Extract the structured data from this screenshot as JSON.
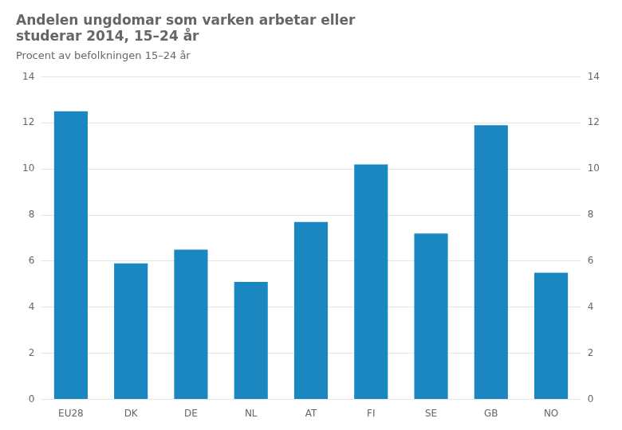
{
  "chart_data": {
    "type": "bar",
    "title": [
      "Andelen ungdomar som varken arbetar eller",
      "studerar 2014, 15–24 år"
    ],
    "subtitle": "Procent av befolkningen 15–24 år",
    "categories": [
      "EU28",
      "DK",
      "DE",
      "NL",
      "AT",
      "FI",
      "SE",
      "GB",
      "NO"
    ],
    "values": [
      12.5,
      5.9,
      6.5,
      5.1,
      7.7,
      10.2,
      7.2,
      11.9,
      5.5
    ],
    "color": "#1a87c0",
    "ylim": [
      0,
      14
    ],
    "yticks": [
      0,
      2,
      4,
      6,
      8,
      10,
      12,
      14
    ],
    "y2lim": [
      0,
      14
    ],
    "y2ticks": [
      0,
      2,
      4,
      6,
      8,
      10,
      12,
      14
    ],
    "grid": true
  }
}
